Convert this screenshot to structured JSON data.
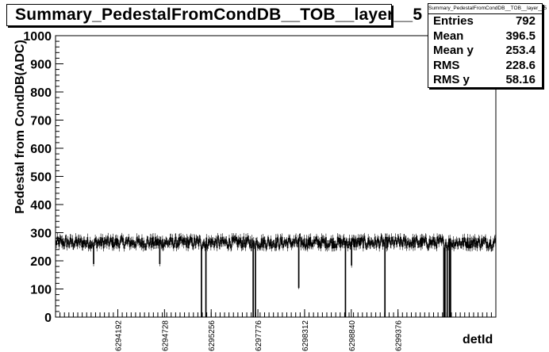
{
  "title": "Summary_PedestalFromCondDB__TOB__layer__5",
  "stats": {
    "title": "Summary_PedestalFromCondDB__TOB__layer__5",
    "rows": [
      {
        "label": "Entries",
        "value": "792"
      },
      {
        "label": "Mean",
        "value": "396.5"
      },
      {
        "label": "Mean y",
        "value": "253.4"
      },
      {
        "label": "RMS",
        "value": "228.6"
      },
      {
        "label": "RMS y",
        "value": "58.16"
      }
    ]
  },
  "chart_data": {
    "type": "bar",
    "title": "Summary_PedestalFromCondDB__TOB__layer__5",
    "xlabel": "detId",
    "ylabel": "Pedestal from CondDB(ADC)",
    "ylim": [
      0,
      1000
    ],
    "yticks": [
      0,
      100,
      200,
      300,
      400,
      500,
      600,
      700,
      800,
      900,
      1000
    ],
    "xlim": [
      0,
      792
    ],
    "xticks": [
      {
        "label": "6294192",
        "bin": 112
      },
      {
        "label": "6294728",
        "bin": 196
      },
      {
        "label": "6295256",
        "bin": 280
      },
      {
        "label": "6297776",
        "bin": 364
      },
      {
        "label": "6298312",
        "bin": 448
      },
      {
        "label": "6298840",
        "bin": 532
      },
      {
        "label": "6299376",
        "bin": 616
      }
    ],
    "n_bins": 792,
    "baseline": 265,
    "fluctuation": 20,
    "error_bar_fraction": 0.1,
    "bins_dips": [
      {
        "bin": 68,
        "value": 190
      },
      {
        "bin": 187,
        "value": 190
      },
      {
        "bin": 262,
        "value": 0
      },
      {
        "bin": 270,
        "value": 0
      },
      {
        "bin": 355,
        "value": 0
      },
      {
        "bin": 359,
        "value": 0
      },
      {
        "bin": 437,
        "value": 105
      },
      {
        "bin": 521,
        "value": 0
      },
      {
        "bin": 532,
        "value": 185
      },
      {
        "bin": 592,
        "value": 0
      },
      {
        "bin": 698,
        "value": 0
      },
      {
        "bin": 700,
        "value": 0
      },
      {
        "bin": 704,
        "value": 0
      },
      {
        "bin": 708,
        "value": 0
      },
      {
        "bin": 710,
        "value": 0
      }
    ],
    "grid": false,
    "legend": "top-right"
  }
}
